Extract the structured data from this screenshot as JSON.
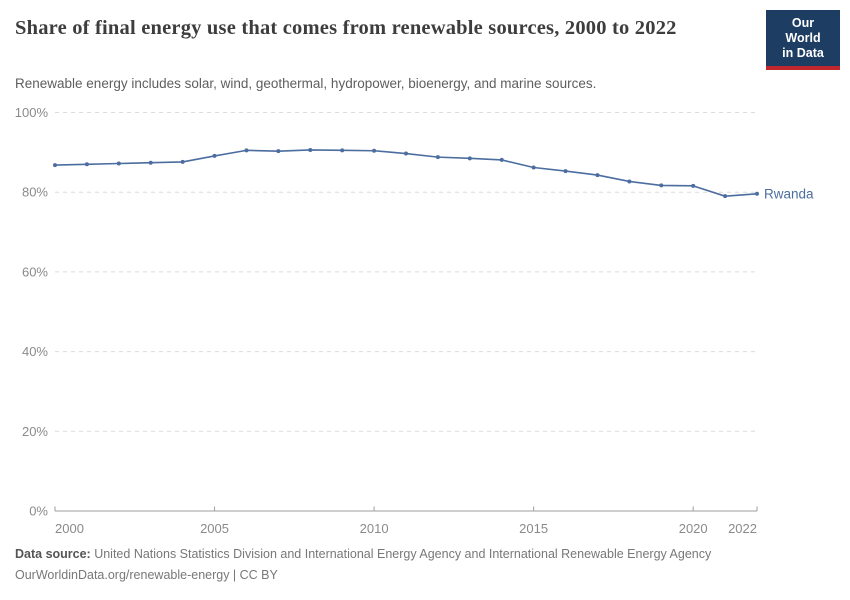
{
  "header": {
    "title": "Share of final energy use that comes from renewable sources, 2000 to 2022",
    "subtitle": "Renewable energy includes solar, wind, geothermal, hydropower, bioenergy, and marine sources.",
    "logo": {
      "line1": "Our World",
      "line2": "in Data"
    }
  },
  "chart_data": {
    "type": "line",
    "title": "Share of final energy use that comes from renewable sources, 2000 to 2022",
    "xlabel": "",
    "ylabel": "",
    "x": [
      2000,
      2001,
      2002,
      2003,
      2004,
      2005,
      2006,
      2007,
      2008,
      2009,
      2010,
      2011,
      2012,
      2013,
      2014,
      2015,
      2016,
      2017,
      2018,
      2019,
      2020,
      2021,
      2022
    ],
    "series": [
      {
        "name": "Rwanda",
        "color": "#4c6da0",
        "values": [
          86.8,
          87.0,
          87.2,
          87.4,
          87.6,
          89.1,
          90.5,
          90.3,
          90.6,
          90.5,
          90.4,
          89.7,
          88.8,
          88.5,
          88.1,
          86.2,
          85.3,
          84.3,
          82.7,
          81.7,
          81.6,
          79.0,
          79.6
        ]
      }
    ],
    "ylim": [
      0,
      100
    ],
    "xlim": [
      2000,
      2022
    ],
    "y_ticks": [
      {
        "value": 0,
        "label": "0%"
      },
      {
        "value": 20,
        "label": "20%"
      },
      {
        "value": 40,
        "label": "40%"
      },
      {
        "value": 60,
        "label": "60%"
      },
      {
        "value": 80,
        "label": "80%"
      },
      {
        "value": 100,
        "label": "100%"
      }
    ],
    "x_ticks": [
      {
        "value": 2000,
        "label": "2000"
      },
      {
        "value": 2005,
        "label": "2005"
      },
      {
        "value": 2010,
        "label": "2010"
      },
      {
        "value": 2015,
        "label": "2015"
      },
      {
        "value": 2020,
        "label": "2020"
      },
      {
        "value": 2022,
        "label": "2022"
      }
    ],
    "grid": "horizontal-dashed",
    "legend_position": "end-of-line"
  },
  "footer": {
    "source_label": "Data source:",
    "source_text": " United Nations Statistics Division and International Energy Agency and International Renewable Energy Agency",
    "license_line": "OurWorldinData.org/renewable-energy | CC BY"
  },
  "colors": {
    "line": "#4c6da0",
    "grid": "#dcdcdc",
    "axis": "#9e9e9e",
    "tick_label": "#8a8a8a",
    "logo_bg": "#1d3d63",
    "logo_accent": "#c0262e"
  }
}
